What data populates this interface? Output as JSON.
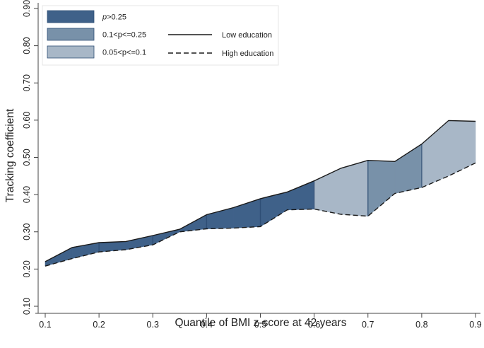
{
  "chart_data": {
    "type": "area",
    "title": "",
    "xlabel": "Quantile of BMI z-score at 42 years",
    "ylabel": "Tracking coefficient",
    "xlim": [
      0.1,
      0.9
    ],
    "ylim": [
      0.1,
      0.9
    ],
    "x_ticks": [
      "0.1",
      "0.2",
      "0.3",
      "0.4",
      "0.5",
      "0.6",
      "0.7",
      "0.8",
      "0.9"
    ],
    "y_ticks": [
      "0.10",
      "0.20",
      "0.30",
      "0.40",
      "0.50",
      "0.60",
      "0.70",
      "0.80",
      "0.90"
    ],
    "x": [
      0.1,
      0.15,
      0.2,
      0.25,
      0.3,
      0.35,
      0.4,
      0.45,
      0.5,
      0.55,
      0.6,
      0.65,
      0.7,
      0.75,
      0.8,
      0.85,
      0.9
    ],
    "series": [
      {
        "name": "Low education",
        "line_style": "solid",
        "values": [
          0.22,
          0.258,
          0.271,
          0.274,
          0.29,
          0.307,
          0.346,
          0.365,
          0.389,
          0.407,
          0.437,
          0.471,
          0.492,
          0.489,
          0.536,
          0.599,
          0.597
        ]
      },
      {
        "name": "High education",
        "line_style": "dashed",
        "values": [
          0.208,
          0.228,
          0.246,
          0.252,
          0.265,
          0.3,
          0.308,
          0.31,
          0.314,
          0.359,
          0.361,
          0.347,
          0.342,
          0.403,
          0.419,
          0.45,
          0.485
        ]
      }
    ],
    "shading_categories": [
      {
        "label_p": "p",
        "label_rest": ">0.25",
        "color": "#3f6189"
      },
      {
        "label_p": "",
        "label_rest": "0.1<p<=0.25",
        "color": "#7891a9"
      },
      {
        "label_p": "",
        "label_rest": "0.05<p<=0.1",
        "color": "#a8b7c7"
      }
    ],
    "shading_by_segment": [
      0,
      0,
      0,
      0,
      0,
      0,
      0,
      0,
      0,
      0,
      2,
      2,
      1,
      1,
      2,
      2
    ],
    "legend": {
      "position": "top-left",
      "line_entries": [
        "Low education",
        "High education"
      ]
    }
  }
}
